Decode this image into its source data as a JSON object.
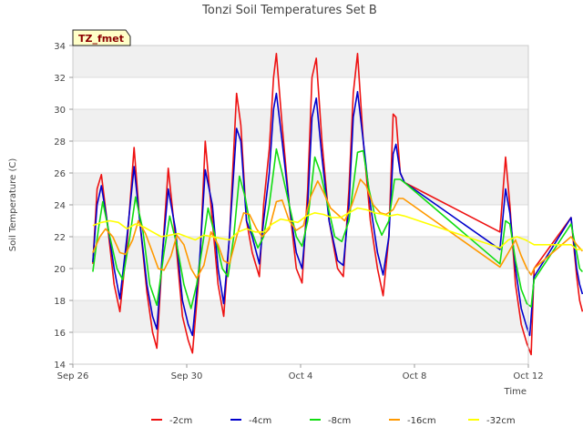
{
  "chart_data": {
    "type": "line",
    "title": "Tonzi Soil Temperatures Set B",
    "xlabel": "Time",
    "ylabel": "Soil Temperature (C)",
    "site_tag": "TZ_fmet",
    "ylim": [
      14,
      34
    ],
    "xlim": [
      0,
      16
    ],
    "x_ticks": [
      {
        "x": 0,
        "label": "Sep 26"
      },
      {
        "x": 4,
        "label": "Sep 30"
      },
      {
        "x": 8,
        "label": "Oct 4"
      },
      {
        "x": 12,
        "label": "Oct 8"
      },
      {
        "x": 16,
        "label": "Oct 12"
      }
    ],
    "y_ticks": [
      14,
      16,
      18,
      20,
      22,
      24,
      26,
      28,
      30,
      32,
      34
    ],
    "grid": true,
    "legend_position": "bottom",
    "series": [
      {
        "name": "-2cm",
        "color": "#ee1111",
        "points": [
          [
            0.7,
            20.3
          ],
          [
            0.85,
            25
          ],
          [
            1.0,
            25.9
          ],
          [
            1.2,
            23
          ],
          [
            1.45,
            19
          ],
          [
            1.65,
            17.3
          ],
          [
            1.9,
            21.5
          ],
          [
            2.15,
            27.6
          ],
          [
            2.35,
            23
          ],
          [
            2.6,
            18.5
          ],
          [
            2.8,
            16
          ],
          [
            2.95,
            15
          ],
          [
            3.15,
            21
          ],
          [
            3.35,
            26.3
          ],
          [
            3.6,
            22
          ],
          [
            3.85,
            17
          ],
          [
            4.05,
            15.5
          ],
          [
            4.2,
            14.7
          ],
          [
            4.45,
            20
          ],
          [
            4.65,
            28
          ],
          [
            4.9,
            23
          ],
          [
            5.1,
            19
          ],
          [
            5.3,
            17
          ],
          [
            5.5,
            22
          ],
          [
            5.75,
            31
          ],
          [
            5.9,
            29
          ],
          [
            6.1,
            23
          ],
          [
            6.3,
            21
          ],
          [
            6.55,
            19.5
          ],
          [
            6.7,
            24
          ],
          [
            6.9,
            27.5
          ],
          [
            7.05,
            32
          ],
          [
            7.15,
            33.5
          ],
          [
            7.35,
            29
          ],
          [
            7.6,
            24
          ],
          [
            7.85,
            20
          ],
          [
            8.05,
            19.1
          ],
          [
            8.25,
            25
          ],
          [
            8.4,
            32
          ],
          [
            8.55,
            33.2
          ],
          [
            8.75,
            28
          ],
          [
            9.0,
            23
          ],
          [
            9.3,
            20
          ],
          [
            9.5,
            19.5
          ],
          [
            9.7,
            25
          ],
          [
            9.85,
            31
          ],
          [
            10.0,
            33.5
          ],
          [
            10.2,
            28
          ],
          [
            10.45,
            23
          ],
          [
            10.7,
            20
          ],
          [
            10.9,
            18.3
          ],
          [
            11.1,
            22
          ],
          [
            11.25,
            29.7
          ],
          [
            11.35,
            29.5
          ],
          [
            11.5,
            26
          ],
          [
            11.65,
            25.4
          ],
          [
            15.0,
            22.3
          ],
          [
            15.2,
            27
          ],
          [
            15.35,
            24
          ],
          [
            15.55,
            19
          ],
          [
            15.75,
            16.5
          ],
          [
            15.95,
            15.3
          ],
          [
            16.1,
            14.6
          ],
          [
            16.2,
            20
          ],
          [
            17.5,
            23.2
          ],
          [
            17.7,
            19.5
          ],
          [
            17.8,
            18
          ],
          [
            17.9,
            17.3
          ]
        ]
      },
      {
        "name": "-4cm",
        "color": "#0000cc",
        "points": [
          [
            0.7,
            20.4
          ],
          [
            0.85,
            24
          ],
          [
            1.0,
            25.2
          ],
          [
            1.2,
            23
          ],
          [
            1.45,
            20
          ],
          [
            1.65,
            18.1
          ],
          [
            1.9,
            22
          ],
          [
            2.15,
            26.4
          ],
          [
            2.35,
            23
          ],
          [
            2.6,
            19
          ],
          [
            2.8,
            17
          ],
          [
            2.95,
            16.2
          ],
          [
            3.15,
            21
          ],
          [
            3.35,
            25
          ],
          [
            3.6,
            22.5
          ],
          [
            3.85,
            18
          ],
          [
            4.05,
            16.5
          ],
          [
            4.2,
            15.8
          ],
          [
            4.45,
            20.5
          ],
          [
            4.65,
            26.2
          ],
          [
            4.9,
            24
          ],
          [
            5.1,
            20
          ],
          [
            5.3,
            17.8
          ],
          [
            5.5,
            22
          ],
          [
            5.75,
            28.8
          ],
          [
            5.9,
            28
          ],
          [
            6.1,
            23
          ],
          [
            6.3,
            22
          ],
          [
            6.55,
            20.3
          ],
          [
            6.7,
            23
          ],
          [
            6.9,
            26
          ],
          [
            7.05,
            30
          ],
          [
            7.15,
            31
          ],
          [
            7.35,
            28
          ],
          [
            7.6,
            24
          ],
          [
            7.85,
            21
          ],
          [
            8.05,
            20
          ],
          [
            8.25,
            24
          ],
          [
            8.4,
            29.5
          ],
          [
            8.55,
            30.7
          ],
          [
            8.75,
            27
          ],
          [
            9.0,
            23
          ],
          [
            9.3,
            20.5
          ],
          [
            9.5,
            20.2
          ],
          [
            9.7,
            24
          ],
          [
            9.85,
            29.5
          ],
          [
            10.0,
            31.1
          ],
          [
            10.2,
            28
          ],
          [
            10.45,
            24
          ],
          [
            10.7,
            21
          ],
          [
            10.9,
            19.6
          ],
          [
            11.1,
            22
          ],
          [
            11.25,
            27.2
          ],
          [
            11.35,
            27.8
          ],
          [
            11.5,
            26
          ],
          [
            11.65,
            25.4
          ],
          [
            15.0,
            21.2
          ],
          [
            15.2,
            25
          ],
          [
            15.35,
            23.5
          ],
          [
            15.55,
            20
          ],
          [
            15.75,
            17.5
          ],
          [
            15.95,
            16.3
          ],
          [
            16.05,
            15.8
          ],
          [
            16.2,
            19.5
          ],
          [
            17.5,
            23.2
          ],
          [
            17.7,
            20
          ],
          [
            17.8,
            19
          ],
          [
            17.9,
            18.4
          ]
        ]
      },
      {
        "name": "-8cm",
        "color": "#11dd11",
        "points": [
          [
            0.7,
            19.8
          ],
          [
            0.9,
            22.5
          ],
          [
            1.05,
            24.2
          ],
          [
            1.3,
            22
          ],
          [
            1.55,
            20
          ],
          [
            1.75,
            19.3
          ],
          [
            2.0,
            22
          ],
          [
            2.2,
            24.5
          ],
          [
            2.45,
            22.5
          ],
          [
            2.7,
            19
          ],
          [
            2.95,
            17.7
          ],
          [
            3.2,
            21
          ],
          [
            3.4,
            23.3
          ],
          [
            3.65,
            21.5
          ],
          [
            3.9,
            19
          ],
          [
            4.15,
            17.5
          ],
          [
            4.35,
            19
          ],
          [
            4.6,
            22
          ],
          [
            4.75,
            23.8
          ],
          [
            5.0,
            22
          ],
          [
            5.25,
            20
          ],
          [
            5.45,
            19.5
          ],
          [
            5.65,
            22
          ],
          [
            5.85,
            25.8
          ],
          [
            6.05,
            24.5
          ],
          [
            6.25,
            22.5
          ],
          [
            6.5,
            21.3
          ],
          [
            6.7,
            22
          ],
          [
            6.9,
            24
          ],
          [
            7.15,
            27.5
          ],
          [
            7.35,
            26
          ],
          [
            7.6,
            24
          ],
          [
            7.85,
            22
          ],
          [
            8.05,
            21.4
          ],
          [
            8.25,
            23
          ],
          [
            8.5,
            27
          ],
          [
            8.7,
            26
          ],
          [
            8.95,
            24
          ],
          [
            9.2,
            22
          ],
          [
            9.45,
            21.7
          ],
          [
            9.7,
            23
          ],
          [
            10.0,
            27.3
          ],
          [
            10.2,
            27.4
          ],
          [
            10.4,
            25
          ],
          [
            10.65,
            23
          ],
          [
            10.85,
            22.1
          ],
          [
            11.1,
            23
          ],
          [
            11.3,
            25.6
          ],
          [
            11.5,
            25.6
          ],
          [
            11.65,
            25.4
          ],
          [
            15.0,
            20.3
          ],
          [
            15.2,
            23
          ],
          [
            15.35,
            22.8
          ],
          [
            15.55,
            20.5
          ],
          [
            15.75,
            18.7
          ],
          [
            15.95,
            17.8
          ],
          [
            16.1,
            17.6
          ],
          [
            16.2,
            19.3
          ],
          [
            17.5,
            22.8
          ],
          [
            17.7,
            21
          ],
          [
            17.8,
            20
          ],
          [
            17.9,
            19.8
          ]
        ]
      },
      {
        "name": "-16cm",
        "color": "#ff9900",
        "points": [
          [
            0.7,
            21
          ],
          [
            0.95,
            22
          ],
          [
            1.15,
            22.5
          ],
          [
            1.4,
            22
          ],
          [
            1.65,
            21
          ],
          [
            1.85,
            20.9
          ],
          [
            2.1,
            21.8
          ],
          [
            2.3,
            23
          ],
          [
            2.55,
            22.2
          ],
          [
            2.8,
            21
          ],
          [
            3.0,
            20
          ],
          [
            3.2,
            19.9
          ],
          [
            3.45,
            20.8
          ],
          [
            3.65,
            22.1
          ],
          [
            3.9,
            21.5
          ],
          [
            4.15,
            20
          ],
          [
            4.35,
            19.4
          ],
          [
            4.6,
            20.2
          ],
          [
            4.85,
            22.3
          ],
          [
            5.1,
            21.5
          ],
          [
            5.3,
            20.5
          ],
          [
            5.5,
            20.3
          ],
          [
            5.75,
            22
          ],
          [
            6.0,
            23.5
          ],
          [
            6.2,
            23.4
          ],
          [
            6.45,
            22.5
          ],
          [
            6.65,
            22
          ],
          [
            6.9,
            22.5
          ],
          [
            7.15,
            24.2
          ],
          [
            7.35,
            24.3
          ],
          [
            7.6,
            23
          ],
          [
            7.85,
            22.4
          ],
          [
            8.1,
            22.7
          ],
          [
            8.35,
            24.5
          ],
          [
            8.6,
            25.5
          ],
          [
            8.8,
            24.8
          ],
          [
            9.05,
            23.8
          ],
          [
            9.3,
            23.4
          ],
          [
            9.55,
            23
          ],
          [
            9.8,
            24
          ],
          [
            10.1,
            25.6
          ],
          [
            10.3,
            25.2
          ],
          [
            10.55,
            24
          ],
          [
            10.8,
            23.5
          ],
          [
            11.0,
            23.4
          ],
          [
            11.25,
            23.7
          ],
          [
            11.45,
            24.4
          ],
          [
            11.6,
            24.4
          ],
          [
            15.0,
            20.1
          ],
          [
            15.3,
            21
          ],
          [
            15.55,
            21.8
          ],
          [
            15.75,
            20.8
          ],
          [
            15.95,
            20
          ],
          [
            16.1,
            19.6
          ],
          [
            16.2,
            20
          ],
          [
            17.5,
            22
          ],
          [
            17.7,
            21.5
          ],
          [
            17.9,
            21.1
          ]
        ]
      },
      {
        "name": "-32cm",
        "color": "#ffff00",
        "points": [
          [
            0.7,
            22.7
          ],
          [
            1.0,
            22.9
          ],
          [
            1.3,
            23
          ],
          [
            1.6,
            22.9
          ],
          [
            1.9,
            22.5
          ],
          [
            2.2,
            22.8
          ],
          [
            2.5,
            22.6
          ],
          [
            2.8,
            22.3
          ],
          [
            3.1,
            22
          ],
          [
            3.4,
            22.1
          ],
          [
            3.7,
            22.2
          ],
          [
            4.0,
            22
          ],
          [
            4.3,
            21.8
          ],
          [
            4.6,
            22.1
          ],
          [
            4.9,
            22
          ],
          [
            5.2,
            21.9
          ],
          [
            5.5,
            21.8
          ],
          [
            5.8,
            22.3
          ],
          [
            6.1,
            22.5
          ],
          [
            6.4,
            22.3
          ],
          [
            6.7,
            22.3
          ],
          [
            7.0,
            22.8
          ],
          [
            7.3,
            23.1
          ],
          [
            7.6,
            23
          ],
          [
            7.9,
            22.9
          ],
          [
            8.2,
            23.3
          ],
          [
            8.5,
            23.5
          ],
          [
            8.8,
            23.4
          ],
          [
            9.1,
            23.2
          ],
          [
            9.4,
            23.2
          ],
          [
            9.7,
            23.5
          ],
          [
            10.0,
            23.8
          ],
          [
            10.3,
            23.7
          ],
          [
            10.6,
            23.5
          ],
          [
            10.9,
            23.4
          ],
          [
            11.1,
            23.3
          ],
          [
            11.4,
            23.4
          ],
          [
            11.65,
            23.3
          ],
          [
            15.0,
            21.3
          ],
          [
            15.3,
            21.8
          ],
          [
            15.6,
            22
          ],
          [
            15.9,
            21.8
          ],
          [
            16.2,
            21.5
          ],
          [
            17.5,
            21.5
          ],
          [
            17.7,
            21.2
          ],
          [
            17.9,
            21.2
          ]
        ]
      }
    ]
  }
}
